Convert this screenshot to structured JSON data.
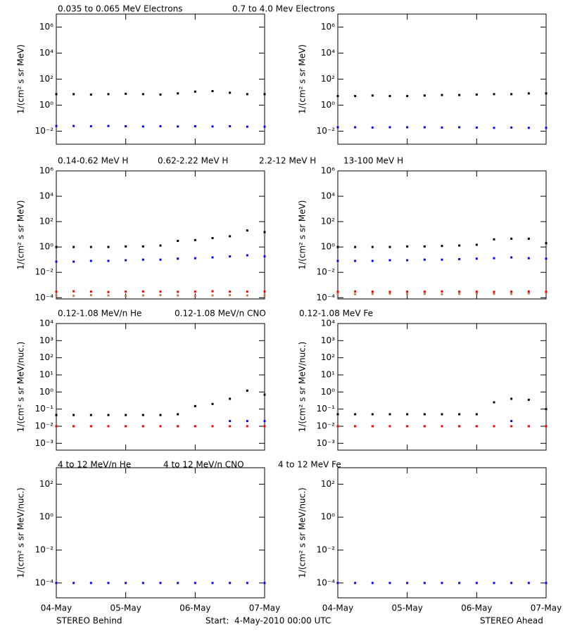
{
  "x_axis": {
    "xlim": [
      0,
      3
    ],
    "xticks": [
      {
        "value": 0,
        "label": "04-May"
      },
      {
        "value": 1,
        "label": "05-May"
      },
      {
        "value": 2,
        "label": "06-May"
      },
      {
        "value": 3,
        "label": "07-May"
      }
    ],
    "x": [
      0,
      0.25,
      0.5,
      0.75,
      1,
      1.25,
      1.5,
      1.75,
      2,
      2.25,
      2.5,
      2.75,
      3
    ]
  },
  "chart_data": [
    {
      "type": "scatter",
      "ylabel": "1/(cm² s sr MeV)",
      "log_y": true,
      "ylim": [
        0.001,
        10000000
      ],
      "yticks": [
        {
          "value": 1000000,
          "label": "10⁶"
        },
        {
          "value": 10000,
          "label": "10⁴"
        },
        {
          "value": 100,
          "label": "10²"
        },
        {
          "value": 1,
          "label": "10⁰"
        },
        {
          "value": 0.01,
          "label": "10⁻²"
        }
      ],
      "series": [
        {
          "name": "0.035 to 0.065 MeV Electrons",
          "color": "#000000",
          "values": [
            7,
            7,
            6.5,
            7,
            7.5,
            7,
            6.5,
            8,
            11,
            12,
            9,
            7,
            7
          ]
        },
        {
          "name": "0.7 to 4.0 Mev Electrons",
          "color": "#0000ff",
          "values": [
            0.025,
            0.025,
            0.024,
            0.025,
            0.024,
            0.023,
            0.024,
            0.023,
            0.024,
            0.023,
            0.024,
            0.022,
            0.022
          ]
        }
      ]
    },
    {
      "type": "scatter",
      "ylabel": "1/(cm² s sr MeV)",
      "log_y": true,
      "ylim": [
        0.001,
        10000000
      ],
      "yticks": [
        {
          "value": 1000000,
          "label": "10⁶"
        },
        {
          "value": 10000,
          "label": "10⁴"
        },
        {
          "value": 100,
          "label": "10²"
        },
        {
          "value": 1,
          "label": "10⁰"
        },
        {
          "value": 0.01,
          "label": "10⁻²"
        }
      ],
      "series": [
        {
          "color": "#000000",
          "values": [
            5,
            5,
            5.5,
            5,
            5,
            5.5,
            6,
            6,
            6.5,
            7,
            7,
            8,
            8
          ]
        },
        {
          "color": "#0000ff",
          "values": [
            0.02,
            0.02,
            0.019,
            0.02,
            0.02,
            0.02,
            0.019,
            0.02,
            0.019,
            0.018,
            0.019,
            0.018,
            0.018
          ]
        }
      ]
    },
    {
      "type": "scatter",
      "ylabel": "1/(cm² s sr MeV)",
      "log_y": true,
      "ylim": [
        8e-05,
        1000000
      ],
      "yticks": [
        {
          "value": 1000000,
          "label": "10⁶"
        },
        {
          "value": 10000,
          "label": "10⁴"
        },
        {
          "value": 100,
          "label": "10²"
        },
        {
          "value": 1,
          "label": "10⁰"
        },
        {
          "value": 0.01,
          "label": "10⁻²"
        },
        {
          "value": 0.0001,
          "label": "10⁻⁴"
        }
      ],
      "series": [
        {
          "name": "0.14-0.62 MeV H",
          "color": "#000000",
          "values": [
            1,
            1,
            1,
            1,
            1.1,
            1.1,
            1.3,
            3,
            3.5,
            5,
            7,
            20,
            15
          ]
        },
        {
          "name": "0.62-2.22 MeV H",
          "color": "#0000ff",
          "values": [
            0.07,
            0.07,
            0.08,
            0.08,
            0.09,
            0.1,
            0.1,
            0.12,
            0.13,
            0.15,
            0.18,
            0.22,
            0.18
          ]
        },
        {
          "name": "2.2-12 MeV H",
          "color": "#c87850",
          "values": [
            0.00015,
            0.00014,
            0.00016,
            0.00015,
            0.00014,
            0.00015,
            0.00016,
            0.00015,
            0.00014,
            0.00015,
            0.00016,
            0.00015,
            0.00015
          ]
        },
        {
          "name": "13-100 MeV H",
          "color": "#ff0000",
          "values": [
            0.0003,
            0.00032,
            0.0003,
            0.00028,
            0.0003,
            0.00031,
            0.0003,
            0.00029,
            0.0003,
            0.00032,
            0.0003,
            0.0003,
            0.00031
          ]
        }
      ]
    },
    {
      "type": "scatter",
      "ylabel": "1/(cm² s sr MeV)",
      "log_y": true,
      "ylim": [
        8e-05,
        1000000
      ],
      "yticks": [
        {
          "value": 1000000,
          "label": "10⁶"
        },
        {
          "value": 10000,
          "label": "10⁴"
        },
        {
          "value": 100,
          "label": "10²"
        },
        {
          "value": 1,
          "label": "10⁰"
        },
        {
          "value": 0.01,
          "label": "10⁻²"
        },
        {
          "value": 0.0001,
          "label": "10⁻⁴"
        }
      ],
      "series": [
        {
          "color": "#000000",
          "values": [
            1,
            1,
            1,
            1,
            1.1,
            1.1,
            1.2,
            1.3,
            1.5,
            4,
            4.5,
            4.5,
            2
          ]
        },
        {
          "color": "#0000ff",
          "values": [
            0.08,
            0.08,
            0.08,
            0.09,
            0.09,
            0.1,
            0.1,
            0.11,
            0.12,
            0.13,
            0.15,
            0.13,
            0.12
          ]
        },
        {
          "color": "#c87850",
          "values": [
            0.0002,
            0.00019,
            0.0002,
            0.00021,
            0.0002,
            0.0002,
            0.00019,
            0.0002,
            0.00021,
            0.0002,
            0.0002,
            0.00022,
            0.00025
          ]
        },
        {
          "color": "#ff0000",
          "values": [
            0.0003,
            0.00031,
            0.0003,
            0.00029,
            0.0003,
            0.0003,
            0.00031,
            0.0003,
            0.0003,
            0.00029,
            0.0003,
            0.00031,
            0.0003
          ]
        }
      ]
    },
    {
      "type": "scatter",
      "ylabel": "1/(cm² s sr MeV/nuc.)",
      "log_y": true,
      "ylim": [
        0.0004,
        10000
      ],
      "yticks": [
        {
          "value": 10000,
          "label": "10⁴"
        },
        {
          "value": 1000,
          "label": "10³"
        },
        {
          "value": 100,
          "label": "10²"
        },
        {
          "value": 10,
          "label": "10¹"
        },
        {
          "value": 1,
          "label": "10⁰"
        },
        {
          "value": 0.1,
          "label": "10⁻¹"
        },
        {
          "value": 0.01,
          "label": "10⁻²"
        },
        {
          "value": 0.001,
          "label": "10⁻³"
        }
      ],
      "series": [
        {
          "name": "0.12-1.08 MeV/n He",
          "color": "#000000",
          "values": [
            0.045,
            0.045,
            0.045,
            0.045,
            0.045,
            0.045,
            0.045,
            0.05,
            0.15,
            0.2,
            0.4,
            1.2,
            0.7
          ]
        },
        {
          "name": "0.12-1.08 MeV/n CNO",
          "color": "#0000ff",
          "values": [
            0.01,
            0.01,
            0.01,
            0.01,
            0.01,
            0.01,
            0.01,
            0.01,
            0.01,
            0.01,
            0.02,
            0.02,
            0.02
          ]
        },
        {
          "name": "0.12-1.08 MeV Fe",
          "color": "#ff0000",
          "values": [
            0.01,
            0.01,
            0.01,
            0.01,
            0.01,
            0.01,
            0.01,
            0.01,
            0.01,
            0.01,
            0.01,
            0.01,
            0.01
          ]
        }
      ]
    },
    {
      "type": "scatter",
      "ylabel": "1/(cm² s sr MeV/nuc.)",
      "log_y": true,
      "ylim": [
        0.0004,
        10000
      ],
      "yticks": [
        {
          "value": 10000,
          "label": "10⁴"
        },
        {
          "value": 1000,
          "label": "10³"
        },
        {
          "value": 100,
          "label": "10²"
        },
        {
          "value": 10,
          "label": "10¹"
        },
        {
          "value": 1,
          "label": "10⁰"
        },
        {
          "value": 0.1,
          "label": "10⁻¹"
        },
        {
          "value": 0.01,
          "label": "10⁻²"
        },
        {
          "value": 0.001,
          "label": "10⁻³"
        }
      ],
      "series": [
        {
          "color": "#000000",
          "values": [
            0.05,
            0.05,
            0.05,
            0.05,
            0.05,
            0.05,
            0.05,
            0.05,
            0.05,
            0.25,
            0.4,
            0.35,
            0.1
          ]
        },
        {
          "color": "#0000ff",
          "values": [
            0.01,
            0.01,
            0.01,
            0.01,
            0.01,
            0.01,
            0.01,
            0.01,
            0.01,
            0.01,
            0.02,
            0.01,
            0.01
          ]
        },
        {
          "color": "#ff0000",
          "values": [
            0.01,
            0.01,
            0.01,
            0.01,
            0.01,
            0.01,
            0.01,
            0.01,
            0.01,
            0.01,
            0.01,
            0.01,
            0.01
          ]
        }
      ]
    },
    {
      "type": "scatter",
      "ylabel": "1/(cm² s sr MeV/nuc.)",
      "log_y": true,
      "ylim": [
        1.25e-05,
        1000
      ],
      "yticks": [
        {
          "value": 100,
          "label": "10²"
        },
        {
          "value": 1,
          "label": "10⁰"
        },
        {
          "value": 0.01,
          "label": "10⁻²"
        },
        {
          "value": 0.0001,
          "label": "10⁻⁴"
        }
      ],
      "series": [
        {
          "name": "4 to 12 MeV/n He",
          "color": "#000000",
          "values": [
            null,
            null,
            null,
            null,
            null,
            null,
            null,
            null,
            null,
            null,
            null,
            null,
            null
          ]
        },
        {
          "name": "4 to 12 MeV/n CNO",
          "color": "#0000ff",
          "values": [
            0.0001,
            0.0001,
            0.0001,
            0.0001,
            0.0001,
            0.0001,
            0.0001,
            0.0001,
            0.0001,
            0.0001,
            0.0001,
            0.0001,
            0.0001
          ]
        },
        {
          "name": "4 to 12 MeV Fe",
          "color": "#ff0000",
          "values": [
            null,
            null,
            null,
            null,
            null,
            null,
            null,
            null,
            null,
            null,
            null,
            null,
            null
          ]
        }
      ]
    },
    {
      "type": "scatter",
      "ylabel": "1/(cm² s sr MeV/nuc.)",
      "log_y": true,
      "ylim": [
        1.25e-05,
        1000
      ],
      "yticks": [
        {
          "value": 100,
          "label": "10²"
        },
        {
          "value": 1,
          "label": "10⁰"
        },
        {
          "value": 0.01,
          "label": "10⁻²"
        },
        {
          "value": 0.0001,
          "label": "10⁻⁴"
        }
      ],
      "series": [
        {
          "color": "#000000",
          "values": [
            null,
            null,
            null,
            null,
            null,
            null,
            null,
            null,
            null,
            null,
            null,
            null,
            null
          ]
        },
        {
          "color": "#0000ff",
          "values": [
            0.0001,
            0.0001,
            0.0001,
            0.0001,
            0.0001,
            0.0001,
            0.0001,
            0.0001,
            0.0001,
            0.0001,
            0.0001,
            0.0001,
            0.0001
          ]
        },
        {
          "color": "#ff0000",
          "values": [
            null,
            null,
            null,
            null,
            null,
            null,
            null,
            null,
            null,
            null,
            null,
            null,
            null
          ]
        }
      ]
    }
  ],
  "footer": {
    "left": "STEREO Behind",
    "center": "Start:  4-May-2010 00:00 UTC",
    "right": "STEREO Ahead"
  }
}
